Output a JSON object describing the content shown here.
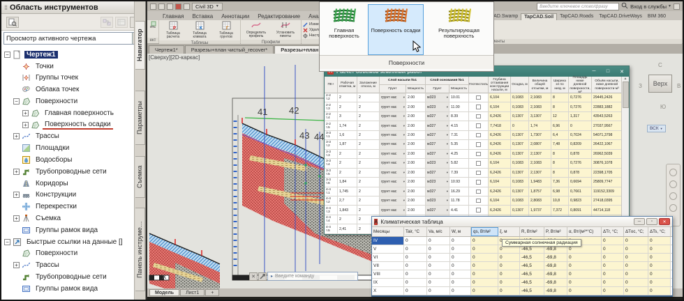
{
  "toolspace": {
    "title": "Область инструментов",
    "view_selector": "Просмотр активного чертежа",
    "help": "?",
    "side_tabs": [
      "Навигатор",
      "Параметры",
      "Съемка",
      "Панель инструме…"
    ],
    "tree": [
      {
        "label": "Чертеж1",
        "icon": "drawing",
        "level": 0,
        "expand": "minus",
        "selected": true,
        "bold": true
      },
      {
        "label": "Точки",
        "icon": "points",
        "level": 1
      },
      {
        "label": "Группы точек",
        "icon": "point-groups",
        "level": 1
      },
      {
        "label": "Облака точек",
        "icon": "point-clouds",
        "level": 1
      },
      {
        "label": "Поверхности",
        "icon": "surfaces",
        "level": 1,
        "expand": "minus"
      },
      {
        "label": "Главная поверхность",
        "icon": "surfaces",
        "level": 2,
        "expand": "plus"
      },
      {
        "label": "Поверхность осадки",
        "icon": "surfaces",
        "level": 2,
        "expand": "plus",
        "underlined": true
      },
      {
        "label": "Трассы",
        "icon": "alignments",
        "level": 1,
        "expand": "plus"
      },
      {
        "label": "Площадки",
        "icon": "sites",
        "level": 1
      },
      {
        "label": "Водосборы",
        "icon": "catchments",
        "level": 1
      },
      {
        "label": "Трубопроводные сети",
        "icon": "pipe-networks",
        "level": 1,
        "expand": "plus"
      },
      {
        "label": "Коридоры",
        "icon": "corridors",
        "level": 1
      },
      {
        "label": "Конструкции",
        "icon": "assemblies",
        "level": 1,
        "expand": "plus"
      },
      {
        "label": "Перекрестки",
        "icon": "intersections",
        "level": 1
      },
      {
        "label": "Съемка",
        "icon": "survey",
        "level": 1,
        "expand": "plus"
      },
      {
        "label": "Группы рамок вида",
        "icon": "view-frames",
        "level": 1
      },
      {
        "label": "Быстрые ссылки на данные []",
        "icon": "data-shortcuts",
        "level": 0,
        "expand": "minus"
      },
      {
        "label": "Поверхности",
        "icon": "surfaces",
        "level": 1
      },
      {
        "label": "Трассы",
        "icon": "alignments",
        "level": 1,
        "expand": "plus"
      },
      {
        "label": "Трубопроводные сети",
        "icon": "pipe-networks",
        "level": 1
      },
      {
        "label": "Группы рамок вида",
        "icon": "view-frames",
        "level": 1
      }
    ]
  },
  "titlebar": {
    "workspace": "Civil 3D",
    "search_placeholder": "Введите ключевое слово/фразу",
    "signin": "Вход в службы"
  },
  "ribbon": {
    "tabs_left": [
      "Главная",
      "Вставка",
      "Аннотации",
      "Редактирование",
      "Анализ",
      "Вид",
      "Управление",
      "Вывод",
      "С"
    ],
    "tabs_right": [
      {
        "label": "anDesigner",
        "active": false
      },
      {
        "label": "TapCAD.Swamp",
        "active": false
      },
      {
        "label": "TapCAD.Soil",
        "active": true
      },
      {
        "label": "TapCAD.Roads",
        "active": false
      },
      {
        "label": "TapCAD.DriveWays",
        "active": false
      },
      {
        "label": "BIM 360",
        "active": false
      }
    ],
    "partial_group": {
      "button": "ить",
      "label": "ект"
    },
    "tables_group": {
      "label": "Таблицы",
      "buttons": [
        "Таблица расчета",
        "Таблица климата",
        "Таблица грунтов"
      ]
    },
    "profiles_group": {
      "label": "Профили",
      "buttons": [
        "Определить профиль",
        "Установить пикеты"
      ]
    },
    "tools_group": {
      "label": "Инструменты",
      "items": [
        "Измерить мощность слоев",
        "Удалить служебные линии",
        "Настройки вычислений"
      ],
      "big_button": "Извлечь 3D грани"
    }
  },
  "surface_panel": {
    "group_label": "Поверхности",
    "buttons": [
      {
        "label": "Главная поверхность",
        "color": "#37a34a",
        "shade": "#1f7030",
        "selected": false
      },
      {
        "label": "Поверхность осадки",
        "color": "#e0762e",
        "shade": "#9e4c15",
        "selected": true
      },
      {
        "label": "Результирующая поверхность",
        "color": "#d2c22f",
        "shade": "#948a17",
        "selected": false
      }
    ]
  },
  "file_tabs": {
    "tabs": [
      {
        "label": "Чертеж1*",
        "active": false
      },
      {
        "label": "Разрезы+план чистый_recover*",
        "active": false
      },
      {
        "label": "Разрезы+план чистый*",
        "active": true,
        "closable": true
      }
    ],
    "add": "+"
  },
  "canvas": {
    "view_label": "[Сверху][2D-каркас]",
    "section_labels": [
      "41",
      "42",
      "43",
      "44"
    ],
    "viewcube": {
      "north": "С",
      "west": "З",
      "east": "В",
      "south": "Ю",
      "top": "Верх",
      "wcs": "ВСК"
    },
    "command_placeholder": "Введите команду",
    "layout_tabs": [
      "Модель",
      "Лист1"
    ],
    "layout_add": "+"
  },
  "volumes_dialog": {
    "title": "Расчёт объёмов земляных работ",
    "columns": {
      "pk": "ПК+",
      "work_mark": "Рабочая отметка, м",
      "slope": "Заложение откоса, м",
      "fill_layer": "Слой насыпи №1",
      "base_layer": "Слой основания №1",
      "soil": "Грунт",
      "thickness": "Мощность",
      "geotextile": "Геотекстиль",
      "thaw_depth": "Глубина оттаивания конструкции насыпи, м",
      "settlement": "Осадка, м",
      "total_fill": "Величина общей отсыпки, м",
      "width_bottom": "Ширина зп по низу, м",
      "area_below": "Площадь ниже дневной поверхности, м²",
      "volume_below": "Объём насыпи, ниже дневной поверхности м³"
    },
    "rows": [
      [
        "2-2",
        "т.2",
        "2",
        "2",
        "грунт нас",
        "2.00",
        "м323",
        "10.01",
        "6,104",
        "0,1083",
        "2,1083",
        "8",
        "0,7276",
        "29445,2426"
      ],
      [
        "2-2",
        "т.3",
        "2",
        "2",
        "грунт нас",
        "2.00",
        "м323",
        "11.00",
        "6,104",
        "0,1083",
        "2,1083",
        "8",
        "0,7276",
        "22883,1882"
      ],
      [
        "2-2",
        "т.4",
        "3",
        "2",
        "грунт нас",
        "2.00",
        "м327",
        "8.39",
        "6,2426",
        "0,1307",
        "3,1307",
        "12",
        "1,317",
        "43543,5263"
      ],
      [
        "2-2",
        "т.5",
        "1,74",
        "2",
        "грунт нас",
        "2.00",
        "м327",
        "4.15",
        "7,7418",
        "0",
        "1,74",
        "6,96",
        "0",
        "27037,9567"
      ],
      [
        "3-3",
        "т.1",
        "1,6",
        "2",
        "грунт нас",
        "2.00",
        "м327",
        "7.31",
        "6,2426",
        "0,1307",
        "1,7307",
        "6,4",
        "0,7024",
        "54071,3798"
      ],
      [
        "3-3",
        "т.2",
        "1,87",
        "2",
        "грунт нас",
        "2.00",
        "м327",
        "5.35",
        "6,2426",
        "0,1307",
        "2,0807",
        "7,48",
        "0,8209",
        "26422,1067"
      ],
      [
        "3-3",
        "т.3",
        "2",
        "2",
        "грунт нас",
        "2.00",
        "м327",
        "4.25",
        "6,2426",
        "0,1307",
        "2,1307",
        "8",
        "0,878",
        "26962,5039"
      ],
      [
        "3-3",
        "т.4",
        "2",
        "2",
        "грунт нас",
        "2.00",
        "м323",
        "5.82",
        "6,104",
        "0,1083",
        "2,1083",
        "8",
        "0,7276",
        "30876,1078"
      ],
      [
        "3-3",
        "т.5",
        "2",
        "2",
        "грунт нас",
        "2.00",
        "м327",
        "7.39",
        "6,2426",
        "0,1307",
        "2,1307",
        "8",
        "0,878",
        "22398,1705"
      ],
      [
        "3-3",
        "т.6",
        "1,84",
        "2",
        "грунт нас",
        "2.00",
        "м323",
        "10.93",
        "6,104",
        "0,1083",
        "1,9483",
        "7,36",
        "0,6694",
        "25809,7747"
      ],
      [
        "4-4",
        "т.1",
        "1,745",
        "2",
        "грунт нас",
        "2.00",
        "м327",
        "16.29",
        "6,2426",
        "0,1307",
        "1,8757",
        "6,98",
        "0,7661",
        "119152,3309"
      ],
      [
        "4-4",
        "т.2",
        "2,7",
        "2",
        "грунт нас",
        "2.00",
        "м323",
        "11.78",
        "6,104",
        "0,1083",
        "2,8083",
        "10,8",
        "0,9823",
        "27418,0395"
      ],
      [
        "4-4",
        "т.3",
        "1,843",
        "2",
        "грунт нас",
        "2.00",
        "м327",
        "4.41",
        "6,2426",
        "0,1307",
        "1,9737",
        "7,372",
        "0,8091",
        "44714,118"
      ],
      [
        "4-4",
        "т.4",
        "2",
        "2",
        "грунт нас",
        "2.00",
        "м323",
        "",
        "",
        "",
        "",
        "",
        "",
        ""
      ],
      [
        "4-4",
        "т.5",
        "2,41",
        "2",
        "грунт нас",
        "2.00",
        "м327",
        "",
        "",
        "",
        "",
        "",
        "",
        ""
      ]
    ]
  },
  "climate_dialog": {
    "title": "Климатическая таблица",
    "columns": [
      "Месяцы",
      "Tair, °C",
      "Va, м/с",
      "W, м",
      "qs, Вт/м²",
      "ξ, м",
      "R, Вт/м²",
      "P, Вт/м²",
      "α, Вт/(м²*°C)",
      "ΔTг, °C;",
      "ΔTос, °C;",
      "ΔTs, °C;"
    ],
    "highlight_column_index": 4,
    "tooltip": "Суммарная солнечная радиация",
    "rows": [
      {
        "month": "IV",
        "selected": true,
        "values": [
          "0",
          "0",
          "0",
          "0",
          "0",
          "-46,5",
          "-69,8",
          "0",
          "0",
          "0",
          "0"
        ]
      },
      {
        "month": "V",
        "selected": false,
        "values": [
          "0",
          "0",
          "0",
          "0",
          "0",
          "-46,5",
          "-69,8",
          "0",
          "0",
          "0",
          "0"
        ]
      },
      {
        "month": "VI",
        "selected": false,
        "values": [
          "0",
          "0",
          "0",
          "0",
          "0",
          "-46,5",
          "-69,8",
          "0",
          "0",
          "0",
          "0"
        ]
      },
      {
        "month": "VII",
        "selected": false,
        "values": [
          "0",
          "0",
          "0",
          "0",
          "0",
          "-46,5",
          "-69,8",
          "0",
          "0",
          "0",
          "0"
        ]
      },
      {
        "month": "VIII",
        "selected": false,
        "values": [
          "0",
          "0",
          "0",
          "0",
          "0",
          "-46,5",
          "-69,8",
          "0",
          "0",
          "0",
          "0"
        ]
      },
      {
        "month": "IX",
        "selected": false,
        "values": [
          "0",
          "0",
          "0",
          "0",
          "0",
          "-46,5",
          "-69,8",
          "0",
          "0",
          "0",
          "0"
        ]
      },
      {
        "month": "X",
        "selected": false,
        "values": [
          "0",
          "0",
          "0",
          "0",
          "0",
          "-46,5",
          "-69,8",
          "0",
          "0",
          "0",
          "0"
        ]
      }
    ]
  }
}
